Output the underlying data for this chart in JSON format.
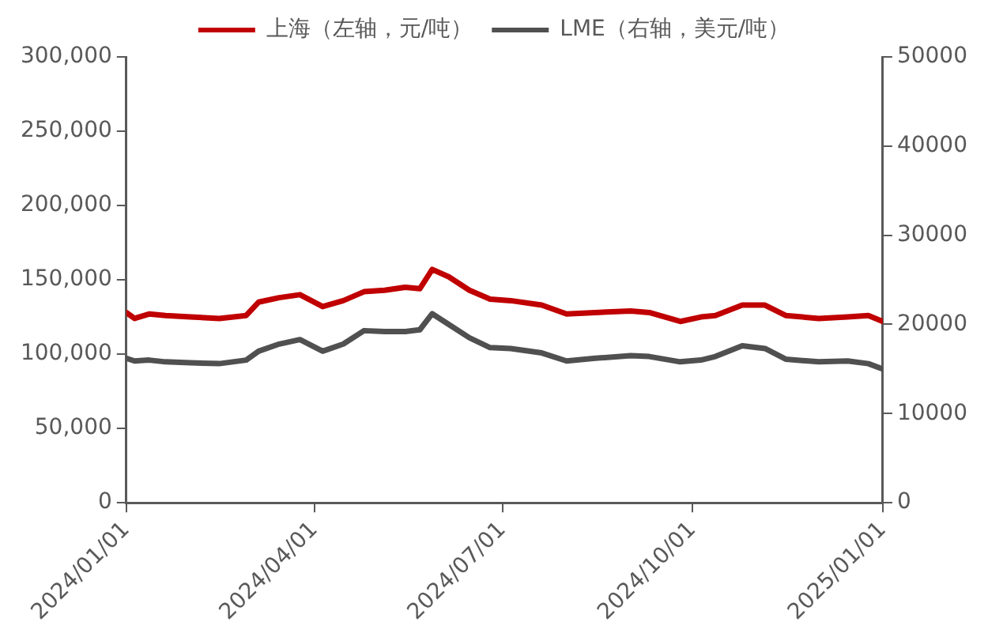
{
  "chart_data": {
    "type": "line",
    "legend": "top",
    "grid": false,
    "marker": "none",
    "line_style": "solid",
    "x": [
      "2024-01-01",
      "2024-01-05",
      "2024-01-12",
      "2024-01-20",
      "2024-02-01",
      "2024-02-15",
      "2024-02-28",
      "2024-03-05",
      "2024-03-15",
      "2024-03-25",
      "2024-04-05",
      "2024-04-15",
      "2024-04-25",
      "2024-05-05",
      "2024-05-15",
      "2024-05-22",
      "2024-05-28",
      "2024-06-05",
      "2024-06-15",
      "2024-06-25",
      "2024-07-05",
      "2024-07-20",
      "2024-08-01",
      "2024-08-15",
      "2024-09-01",
      "2024-09-10",
      "2024-09-25",
      "2024-10-05",
      "2024-10-12",
      "2024-10-25",
      "2024-11-05",
      "2024-11-15",
      "2024-12-01",
      "2024-12-15",
      "2024-12-25",
      "2025-01-01"
    ],
    "series": [
      {
        "name": "上海（左轴，元/吨）",
        "color": "#c00000",
        "values": [
          128000,
          124000,
          127000,
          126000,
          125000,
          124000,
          126000,
          135000,
          138000,
          140000,
          132000,
          136000,
          142000,
          143000,
          145000,
          144000,
          157000,
          152000,
          143000,
          137000,
          136000,
          133000,
          127000,
          128000,
          129000,
          128000,
          122000,
          125000,
          126000,
          133000,
          133000,
          126000,
          124000,
          125000,
          126000,
          122000
        ]
      },
      {
        "name": "LME（右轴，美元/吨）",
        "color": "#505050",
        "axis": "y2",
        "values": [
          16200,
          15900,
          16000,
          15800,
          15700,
          15600,
          16000,
          17000,
          17800,
          18300,
          17000,
          17800,
          19300,
          19200,
          19200,
          19400,
          21200,
          20000,
          18500,
          17400,
          17300,
          16800,
          15900,
          16200,
          16500,
          16400,
          15800,
          16000,
          16400,
          17600,
          17300,
          16100,
          15800,
          15900,
          15600,
          15000
        ]
      }
    ],
    "xlim": [
      "2024-01-01",
      "2025-01-01"
    ],
    "xticks": [
      {
        "value": "2024-01-01",
        "label": "2024/01/01"
      },
      {
        "value": "2024-04-01",
        "label": "2024/04/01"
      },
      {
        "value": "2024-07-01",
        "label": "2024/07/01"
      },
      {
        "value": "2024-10-01",
        "label": "2024/10/01"
      },
      {
        "value": "2025-01-01",
        "label": "2025/01/01"
      }
    ],
    "ylim": [
      0,
      300000
    ],
    "yticks": [
      0,
      {
        "value": 50000,
        "label": "50,000"
      },
      {
        "value": 100000,
        "label": "100,000"
      },
      {
        "value": 150000,
        "label": "150,000"
      },
      {
        "value": 200000,
        "label": "200,000"
      },
      {
        "value": 250000,
        "label": "250,000"
      },
      {
        "value": 300000,
        "label": "300,000"
      }
    ],
    "y2lim": [
      0,
      50000
    ],
    "y2ticks": [
      0,
      10000,
      20000,
      30000,
      40000,
      50000
    ]
  }
}
